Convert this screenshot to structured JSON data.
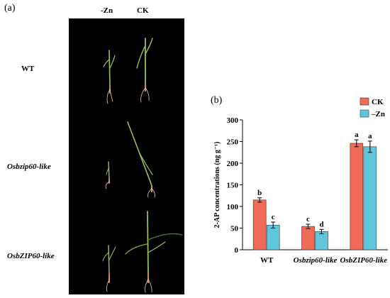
{
  "figure": {
    "panel_a_label": "(a)",
    "panel_b_label": "(b)",
    "photo": {
      "column_labels": [
        "-Zn",
        "CK"
      ],
      "row_labels": [
        "WT",
        "Osbzip60-like",
        "OsbZIP60-like"
      ]
    }
  },
  "chart_data": {
    "type": "bar",
    "title": "",
    "xlabel": "",
    "ylabel": "2-AP concentrations (ng g⁻¹)",
    "ylim": [
      0,
      300
    ],
    "yticks": [
      0,
      50,
      100,
      150,
      200,
      250,
      300
    ],
    "categories": [
      "WT",
      "Osbzip60-like",
      "OsbZIP60-like"
    ],
    "category_italic": [
      false,
      true,
      true
    ],
    "grid": false,
    "legend_position": "top-right",
    "series": [
      {
        "name": "CK",
        "color": "#f06a5a",
        "values": [
          115,
          54,
          246
        ],
        "errors": [
          5,
          5,
          8
        ],
        "letters": [
          "b",
          "c",
          "a"
        ]
      },
      {
        "name": "–Zn",
        "color": "#5fc6dc",
        "values": [
          57,
          42,
          238
        ],
        "errors": [
          7,
          5,
          13
        ],
        "letters": [
          "c",
          "d",
          "a"
        ]
      }
    ]
  }
}
